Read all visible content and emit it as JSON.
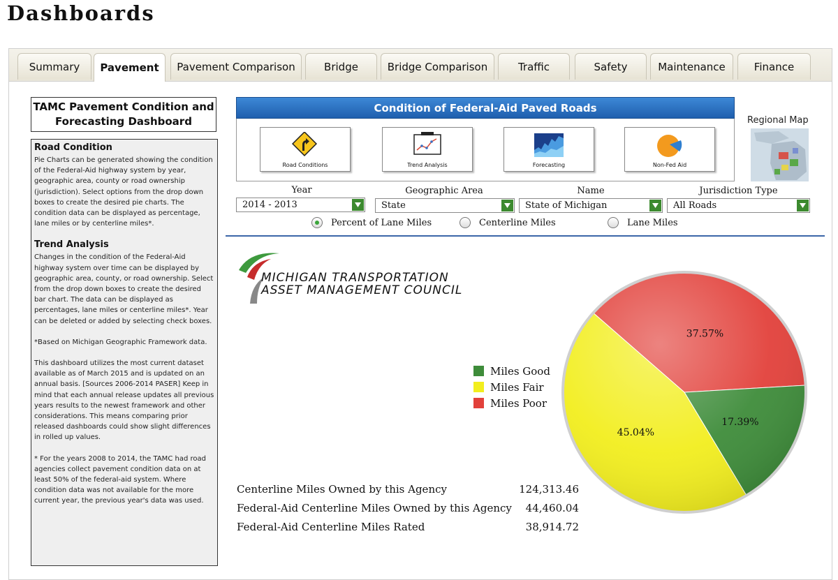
{
  "page_title": "Dashboards",
  "tabs": [
    {
      "label": "Summary"
    },
    {
      "label": "Pavement"
    },
    {
      "label": "Pavement Comparison"
    },
    {
      "label": "Bridge"
    },
    {
      "label": "Bridge Comparison"
    },
    {
      "label": "Traffic"
    },
    {
      "label": "Safety"
    },
    {
      "label": "Maintenance"
    },
    {
      "label": "Finance"
    }
  ],
  "active_tab": "Pavement",
  "left": {
    "title": "TAMC Pavement Condition and Forecasting Dashboard",
    "road_condition_heading": "Road Condition",
    "road_condition_text": "Pie Charts can be generated showing the condition of the Federal-Aid highway system by year, geographic area, county or road ownership (jurisdiction). Select options from the drop down boxes to create the desired pie charts. The condition data can be displayed as percentage, lane miles or by centerline miles*.",
    "trend_heading": "Trend Analysis",
    "trend_text": "Changes in the condition of the Federal-Aid highway system over time can be displayed by geographic area, county, or road ownership. Select from the drop down boxes to create the desired bar chart. The data can be displayed as percentages, lane miles or centerline miles*. Year can be deleted or added by selecting check boxes.",
    "note1": "*Based on Michigan Geographic Framework data.",
    "note2": "This dashboard utilizes the most current dataset available as of March 2015 and is updated on an annual basis. [Sources 2006-2014 PASER] Keep in mind that each annual release updates all previous years results to the newest framework and other considerations. This means comparing prior released dashboards could show slight differences in rolled up values.",
    "note3": "* For the years 2008 to 2014, the TAMC had road agencies collect pavement condition data on at least 50% of the federal-aid system. Where condition data was not available for the more current year, the previous year's data was used."
  },
  "banner": "Condition of Federal-Aid Paved Roads",
  "icons": [
    {
      "caption": "Road Conditions",
      "icon": "road-sign-icon"
    },
    {
      "caption": "Trend Analysis",
      "icon": "trend-chart-icon"
    },
    {
      "caption": "Forecasting",
      "icon": "forecast-chart-icon"
    },
    {
      "caption": "Non-Fed Aid",
      "icon": "pie-icon"
    }
  ],
  "regional_map_label": "Regional Map",
  "filters": {
    "year_label": "Year",
    "year_value": "2014 - 2013",
    "geo_label": "Geographic Area",
    "geo_value": "State",
    "name_label": "Name",
    "name_value": "State of Michigan",
    "jur_label": "Jurisdiction Type",
    "jur_value": "All Roads"
  },
  "radios": [
    {
      "label": "Percent of Lane Miles",
      "selected": true
    },
    {
      "label": "Centerline Miles",
      "selected": false
    },
    {
      "label": "Lane Miles",
      "selected": false
    }
  ],
  "logo": {
    "line1": "MICHIGAN TRANSPORTATION",
    "line2": "ASSET MANAGEMENT COUNCIL"
  },
  "legend": [
    {
      "label": "Miles Good",
      "color": "#3e8c3a"
    },
    {
      "label": "Miles Fair",
      "color": "#f2ee1e"
    },
    {
      "label": "Miles Poor",
      "color": "#e2413b"
    }
  ],
  "stats": [
    {
      "label": "Centerline Miles Owned by this Agency",
      "value": "124,313.46"
    },
    {
      "label": "Federal-Aid Centerline Miles Owned by this Agency",
      "value": "44,460.04"
    },
    {
      "label": "Federal-Aid Centerline Miles Rated",
      "value": "38,914.72"
    }
  ],
  "chart_data": {
    "type": "pie",
    "slices": [
      {
        "name": "Miles Good",
        "value": 17.39,
        "label": "17.39%",
        "color": "#3e8c3a"
      },
      {
        "name": "Miles Fair",
        "value": 45.04,
        "label": "45.04%",
        "color": "#f2ee1e"
      },
      {
        "name": "Miles Poor",
        "value": 37.57,
        "label": "37.57%",
        "color": "#e2413b"
      }
    ],
    "legend_position": "left"
  }
}
